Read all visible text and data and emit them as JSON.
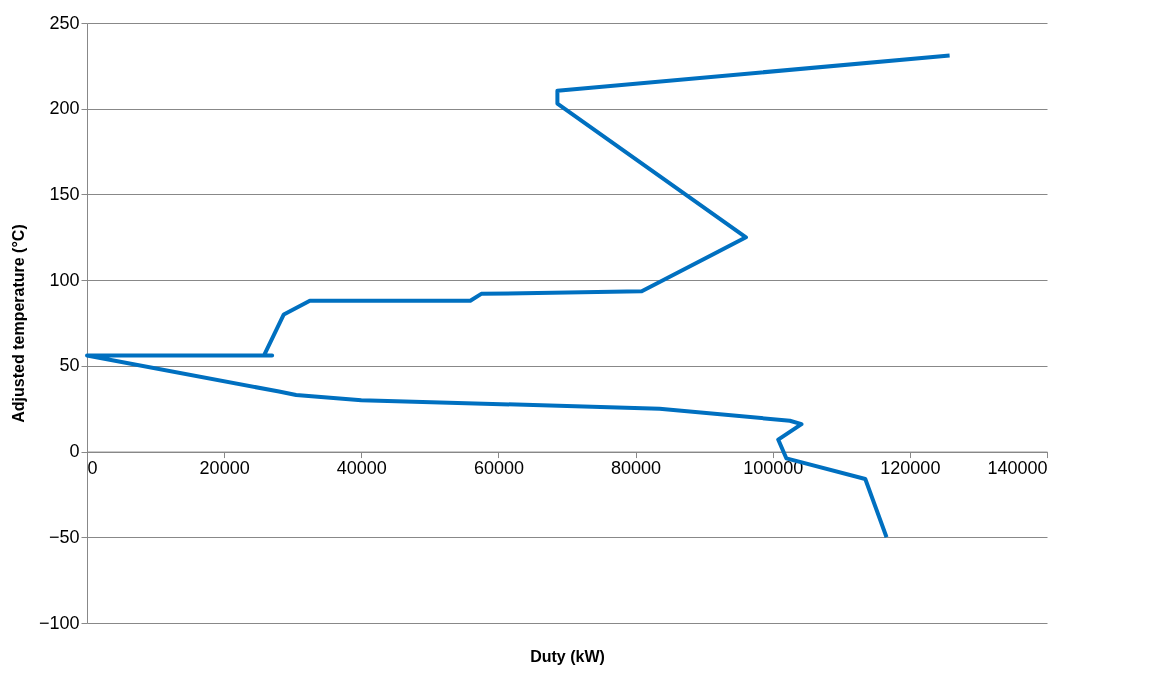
{
  "chart_data": {
    "type": "line",
    "xlabel": "Duty (kW)",
    "ylabel": "Adjusted temperature (°C)",
    "series": [
      {
        "color": "#0070c0",
        "x": [
          125800,
          68600,
          68600,
          96100,
          80900,
          57500,
          55900,
          32500,
          28700,
          25800,
          27000,
          0,
          28000,
          30500,
          40000,
          83500,
          102500,
          104200,
          100800,
          102000,
          113500,
          116600
        ],
        "values": [
          231,
          210.5,
          203,
          125,
          93.5,
          92,
          88,
          88,
          80,
          56,
          56,
          56,
          35,
          33,
          30,
          25,
          18,
          16,
          7,
          -4,
          -16,
          -50
        ]
      }
    ],
    "xlim": [
      0,
      140000
    ],
    "xticks": [
      0,
      20000,
      40000,
      60000,
      80000,
      100000,
      120000,
      140000
    ],
    "ylim": [
      -100,
      250
    ],
    "yticks": [
      -100,
      -50,
      0,
      50,
      100,
      150,
      200,
      250
    ],
    "grid": "y",
    "marker": "none",
    "line_style": "solid"
  }
}
